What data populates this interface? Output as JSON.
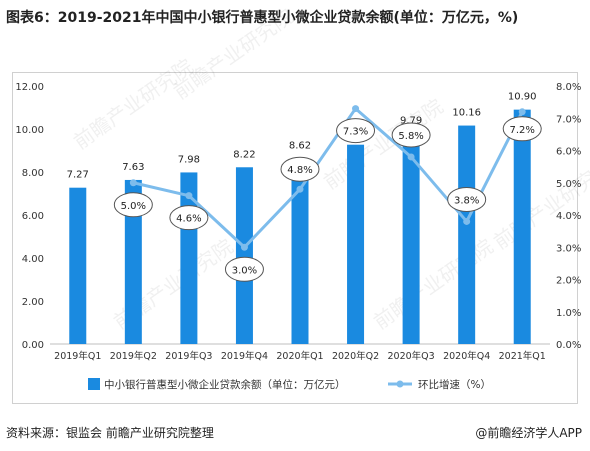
{
  "title": "图表6：2019-2021年中国中小银行普惠型小微企业贷款余额(单位：万亿元，%)",
  "source": "资料来源：银监会 前瞻产业研究院整理",
  "brand": "@前瞻经济学人APP",
  "watermark": "前瞻产业研究院",
  "colors": {
    "bar": "#1a8ae0",
    "line": "#7dbcec",
    "label_border": "#555555",
    "grid": "#e0e0e0"
  },
  "chart_data": {
    "type": "bar",
    "categories": [
      "2019年Q1",
      "2019年Q2",
      "2019年Q3",
      "2019年Q4",
      "2020年Q1",
      "2020年Q2",
      "2020年Q3",
      "2020年Q4",
      "2021年Q1"
    ],
    "series": [
      {
        "name": "中小银行普惠型小微企业贷款余额（单位：万亿元）",
        "type": "bar",
        "axis": "left",
        "values": [
          7.27,
          7.63,
          7.98,
          8.22,
          8.62,
          9.27,
          9.79,
          10.16,
          10.9
        ],
        "labels": [
          "7.27",
          "7.63",
          "7.98",
          "8.22",
          "8.62",
          "",
          "9.79",
          "10.16",
          "10.90"
        ]
      },
      {
        "name": "环比增速（%）",
        "type": "line",
        "axis": "right",
        "values": [
          null,
          5.0,
          4.6,
          3.0,
          4.8,
          7.3,
          5.8,
          3.8,
          7.2
        ],
        "labels": [
          "",
          "5.0%",
          "4.6%",
          "3.0%",
          "4.8%",
          "7.3%",
          "5.8%",
          "3.8%",
          "7.2%"
        ]
      }
    ],
    "y_left": {
      "min": 0,
      "max": 12,
      "ticks": [
        "0.00",
        "2.00",
        "4.00",
        "6.00",
        "8.00",
        "10.00",
        "12.00"
      ]
    },
    "y_right": {
      "min": 0,
      "max": 8,
      "ticks": [
        "0.0%",
        "1.0%",
        "2.0%",
        "3.0%",
        "4.0%",
        "5.0%",
        "6.0%",
        "7.0%",
        "8.0%"
      ]
    },
    "legend_position": "bottom",
    "grid": false
  }
}
